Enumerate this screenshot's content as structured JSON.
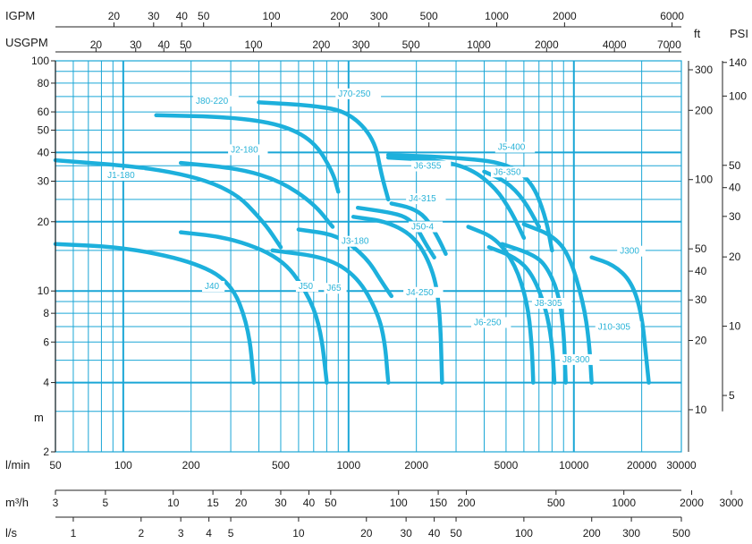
{
  "chart_data": {
    "type": "line",
    "title": "",
    "colors": {
      "grid": "#1aa6d6",
      "curve": "#1db0dc",
      "axis": "#222222",
      "background": "#ffffff"
    },
    "x_axis_flow": {
      "unit": "l/min",
      "scale": "log",
      "range": [
        50,
        30000
      ],
      "ticks": [
        "50",
        "100",
        "200",
        "500",
        "1000",
        "2000",
        "5000",
        "10000",
        "20000",
        "30000"
      ]
    },
    "y_axis_head": {
      "unit": "m",
      "scale": "log",
      "range": [
        2,
        100
      ],
      "ticks": [
        "100",
        "80",
        "60",
        "50",
        "40",
        "30",
        "20",
        "10",
        "8",
        "6",
        "4",
        "2"
      ]
    },
    "top_axis_igpm": {
      "unit": "IGPM",
      "ticks": [
        "20",
        "30",
        "40",
        "50",
        "100",
        "200",
        "300",
        "500",
        "1000",
        "2000",
        "6000"
      ]
    },
    "top_axis_usgpm": {
      "unit": "USGPM",
      "ticks": [
        "20",
        "30",
        "40",
        "50",
        "100",
        "200",
        "300",
        "500",
        "1000",
        "2000",
        "4000",
        "7000"
      ]
    },
    "right_axis_ft": {
      "unit": "ft",
      "ticks": [
        "300",
        "200",
        "100",
        "50",
        "40",
        "30",
        "20",
        "10"
      ]
    },
    "right_axis_psi": {
      "unit": "PSI",
      "ticks": [
        "140",
        "100",
        "50",
        "40",
        "30",
        "20",
        "10",
        "5"
      ]
    },
    "bottom_axis_m3h": {
      "unit": "m³/h",
      "ticks": [
        "3",
        "5",
        "10",
        "15",
        "20",
        "30",
        "40",
        "50",
        "100",
        "150",
        "200",
        "500",
        "1000",
        "2000",
        "3000"
      ]
    },
    "bottom_axis_ls": {
      "unit": "l/s",
      "ticks": [
        "1",
        "2",
        "3",
        "4",
        "5",
        "10",
        "20",
        "30",
        "40",
        "50",
        "100",
        "200",
        "300",
        "500"
      ]
    },
    "series": [
      {
        "name": "J40",
        "points": [
          [
            50,
            16
          ],
          [
            100,
            15.5
          ],
          [
            200,
            13.5
          ],
          [
            300,
            11
          ],
          [
            360,
            7
          ],
          [
            380,
            4
          ]
        ],
        "label_at": [
          230,
          10.2
        ]
      },
      {
        "name": "J1-180",
        "points": [
          [
            50,
            37
          ],
          [
            150,
            34
          ],
          [
            300,
            28
          ],
          [
            420,
            20
          ],
          [
            500,
            15.5
          ]
        ],
        "label_at": [
          85,
          31
        ]
      },
      {
        "name": "J80-220",
        "points": [
          [
            140,
            58
          ],
          [
            300,
            57
          ],
          [
            500,
            53
          ],
          [
            700,
            45
          ],
          [
            850,
            33
          ],
          [
            900,
            27
          ]
        ],
        "label_at": [
          210,
          65
        ]
      },
      {
        "name": "J2-180",
        "points": [
          [
            180,
            36
          ],
          [
            330,
            34
          ],
          [
            500,
            30
          ],
          [
            700,
            24
          ],
          [
            850,
            19
          ]
        ],
        "label_at": [
          300,
          40
        ]
      },
      {
        "name": "J70-250",
        "points": [
          [
            400,
            66
          ],
          [
            700,
            64
          ],
          [
            1000,
            60
          ],
          [
            1300,
            46
          ],
          [
            1400,
            32
          ],
          [
            1500,
            25
          ]
        ],
        "label_at": [
          900,
          70
        ]
      },
      {
        "name": "J50",
        "points": [
          [
            180,
            18
          ],
          [
            300,
            17
          ],
          [
            500,
            14
          ],
          [
            650,
            10
          ],
          [
            750,
            7
          ],
          [
            800,
            4
          ]
        ],
        "label_at": [
          600,
          10.2
        ]
      },
      {
        "name": "J65",
        "points": [
          [
            460,
            15
          ],
          [
            800,
            14
          ],
          [
            1100,
            11.5
          ],
          [
            1350,
            8
          ],
          [
            1450,
            6
          ],
          [
            1500,
            4
          ]
        ],
        "label_at": [
          800,
          10
        ]
      },
      {
        "name": "J3-180",
        "points": [
          [
            600,
            18.5
          ],
          [
            900,
            17.5
          ],
          [
            1200,
            14
          ],
          [
            1400,
            11
          ],
          [
            1550,
            9.5
          ]
        ],
        "label_at": [
          930,
          16
        ]
      },
      {
        "name": "J4-250",
        "points": [
          [
            1050,
            21
          ],
          [
            1500,
            20
          ],
          [
            2000,
            17
          ],
          [
            2400,
            12
          ],
          [
            2550,
            8
          ],
          [
            2600,
            4
          ]
        ],
        "label_at": [
          1800,
          9.6
        ]
      },
      {
        "name": "J4-315",
        "points": [
          [
            1100,
            23
          ],
          [
            1500,
            22
          ],
          [
            1800,
            21
          ],
          [
            2000,
            19
          ],
          [
            2200,
            16
          ],
          [
            2400,
            14
          ]
        ],
        "label_at": [
          1850,
          24.5
        ]
      },
      {
        "name": "J50-4",
        "points": [
          [
            1550,
            24
          ],
          [
            1900,
            23
          ],
          [
            2200,
            21
          ],
          [
            2500,
            17
          ],
          [
            2700,
            14.5
          ]
        ],
        "label_at": [
          1900,
          18.5
        ]
      },
      {
        "name": "J6-355",
        "points": [
          [
            1500,
            38
          ],
          [
            2500,
            37
          ],
          [
            3500,
            34
          ],
          [
            4500,
            28
          ],
          [
            5300,
            22
          ],
          [
            6000,
            17
          ]
        ],
        "label_at": [
          1950,
          34
        ]
      },
      {
        "name": "J6-350",
        "points": [
          [
            4000,
            33
          ],
          [
            5000,
            30
          ],
          [
            6000,
            25
          ],
          [
            7000,
            19
          ]
        ],
        "label_at": [
          4400,
          32
        ]
      },
      {
        "name": "J5-400",
        "points": [
          [
            1500,
            39
          ],
          [
            3000,
            38
          ],
          [
            5000,
            36
          ],
          [
            6500,
            30
          ],
          [
            7500,
            21
          ],
          [
            8000,
            15
          ]
        ],
        "label_at": [
          4600,
          41
        ]
      },
      {
        "name": "J6-250",
        "points": [
          [
            3400,
            19
          ],
          [
            4500,
            17
          ],
          [
            5500,
            13
          ],
          [
            6200,
            9
          ],
          [
            6500,
            6
          ],
          [
            6600,
            4
          ]
        ],
        "label_at": [
          3600,
          7.1
        ]
      },
      {
        "name": "J8-305",
        "points": [
          [
            4200,
            15.5
          ],
          [
            5500,
            14
          ],
          [
            6500,
            12
          ],
          [
            7500,
            8.5
          ],
          [
            8000,
            6
          ],
          [
            8200,
            4
          ]
        ],
        "label_at": [
          6700,
          8.6
        ]
      },
      {
        "name": "J8-300",
        "points": [
          [
            4800,
            16
          ],
          [
            6500,
            14.5
          ],
          [
            7500,
            13
          ],
          [
            8500,
            10
          ],
          [
            9000,
            7
          ],
          [
            9200,
            4
          ]
        ],
        "label_at": [
          8900,
          4.9
        ]
      },
      {
        "name": "J10-305",
        "points": [
          [
            6000,
            19.5
          ],
          [
            8000,
            17.5
          ],
          [
            9500,
            14.5
          ],
          [
            11000,
            9
          ],
          [
            11700,
            6
          ],
          [
            12000,
            4
          ]
        ],
        "label_at": [
          12800,
          6.8
        ]
      },
      {
        "name": "J300",
        "points": [
          [
            12000,
            14
          ],
          [
            15000,
            13
          ],
          [
            18000,
            11
          ],
          [
            20000,
            8
          ],
          [
            21000,
            5
          ],
          [
            21500,
            4
          ]
        ],
        "label_at": [
          16000,
          14.5
        ]
      }
    ]
  }
}
